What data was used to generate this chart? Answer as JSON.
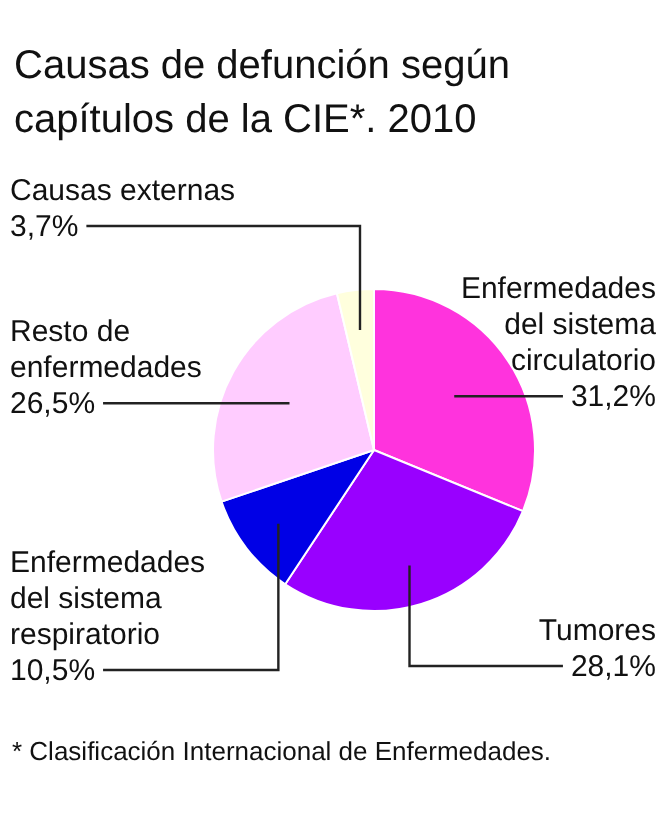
{
  "chart_data": {
    "type": "pie",
    "title": "Causas de defunción según capítulos de la CIE*. 2010",
    "categories": [
      "Enfermedades\ndel sistema\ncirculatorio",
      "Tumores",
      "Enfermedades\ndel sistema\nrespiratorio",
      "Resto de\nenfermedades",
      "Causas externas"
    ],
    "values": [
      31.2,
      28.1,
      10.5,
      26.5,
      3.7
    ],
    "value_labels": [
      "31,2%",
      "28,1%",
      "10,5%",
      "26,5%",
      "3,7%"
    ],
    "colors": [
      "#ff33dd",
      "#9900ff",
      "#0000e6",
      "#ffccff",
      "#ffffdd"
    ],
    "annotations": [
      "* Clasificación Internacional de Enfermedades."
    ],
    "legend": false
  }
}
